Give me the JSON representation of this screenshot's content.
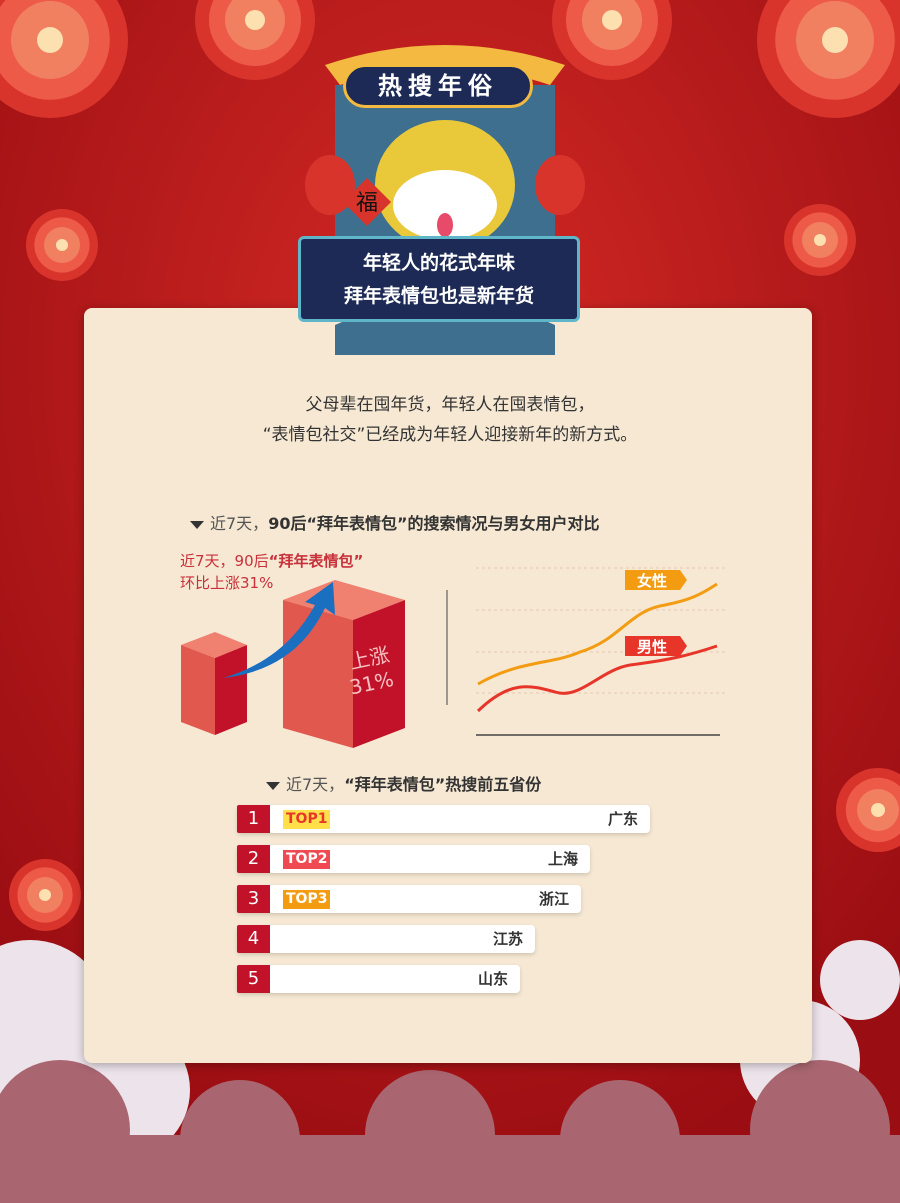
{
  "header": {
    "title": "热搜年俗",
    "banner_line1": "年轻人的花式年味",
    "banner_line2": "拜年表情包也是新年货",
    "fu_char": "福"
  },
  "intro": {
    "line1": "父母辈在囤年货，年轻人在囤表情包，",
    "line2": "“表情包社交”已经成为年轻人迎接新年的新方式。"
  },
  "section1": {
    "prefix": "近7天，",
    "title": "90后“拜年表情包”的搜索情况与男女用户对比",
    "note_line1_a": "近7天，90后",
    "note_line1_b": "“拜年表情包”",
    "note_line2": "环比上涨31%",
    "bar_label1": "上涨",
    "bar_label2": "31%",
    "growth_percent": 31,
    "legend": [
      {
        "name": "女性",
        "color": "#f39c12"
      },
      {
        "name": "男性",
        "color": "#e8352a"
      }
    ]
  },
  "section2": {
    "prefix": "近7天，",
    "title": "“拜年表情包”热搜前五省份",
    "rows": [
      {
        "rank": "1",
        "badge": "TOP1",
        "badge_bg": "#ffe04a",
        "badge_color": "#e8352a",
        "province": "广东"
      },
      {
        "rank": "2",
        "badge": "TOP2",
        "badge_bg": "#ef4a52",
        "badge_color": "#ffffff",
        "province": "上海"
      },
      {
        "rank": "3",
        "badge": "TOP3",
        "badge_bg": "#f39c12",
        "badge_color": "#ffffff",
        "province": "浙江"
      },
      {
        "rank": "4",
        "badge": "",
        "province": "江苏"
      },
      {
        "rank": "5",
        "badge": "",
        "province": "山东"
      }
    ]
  },
  "colors": {
    "background": "#b3121a",
    "card": "#f6e8d3",
    "accent": "#c2122a",
    "arrow": "#1a6fc0"
  }
}
